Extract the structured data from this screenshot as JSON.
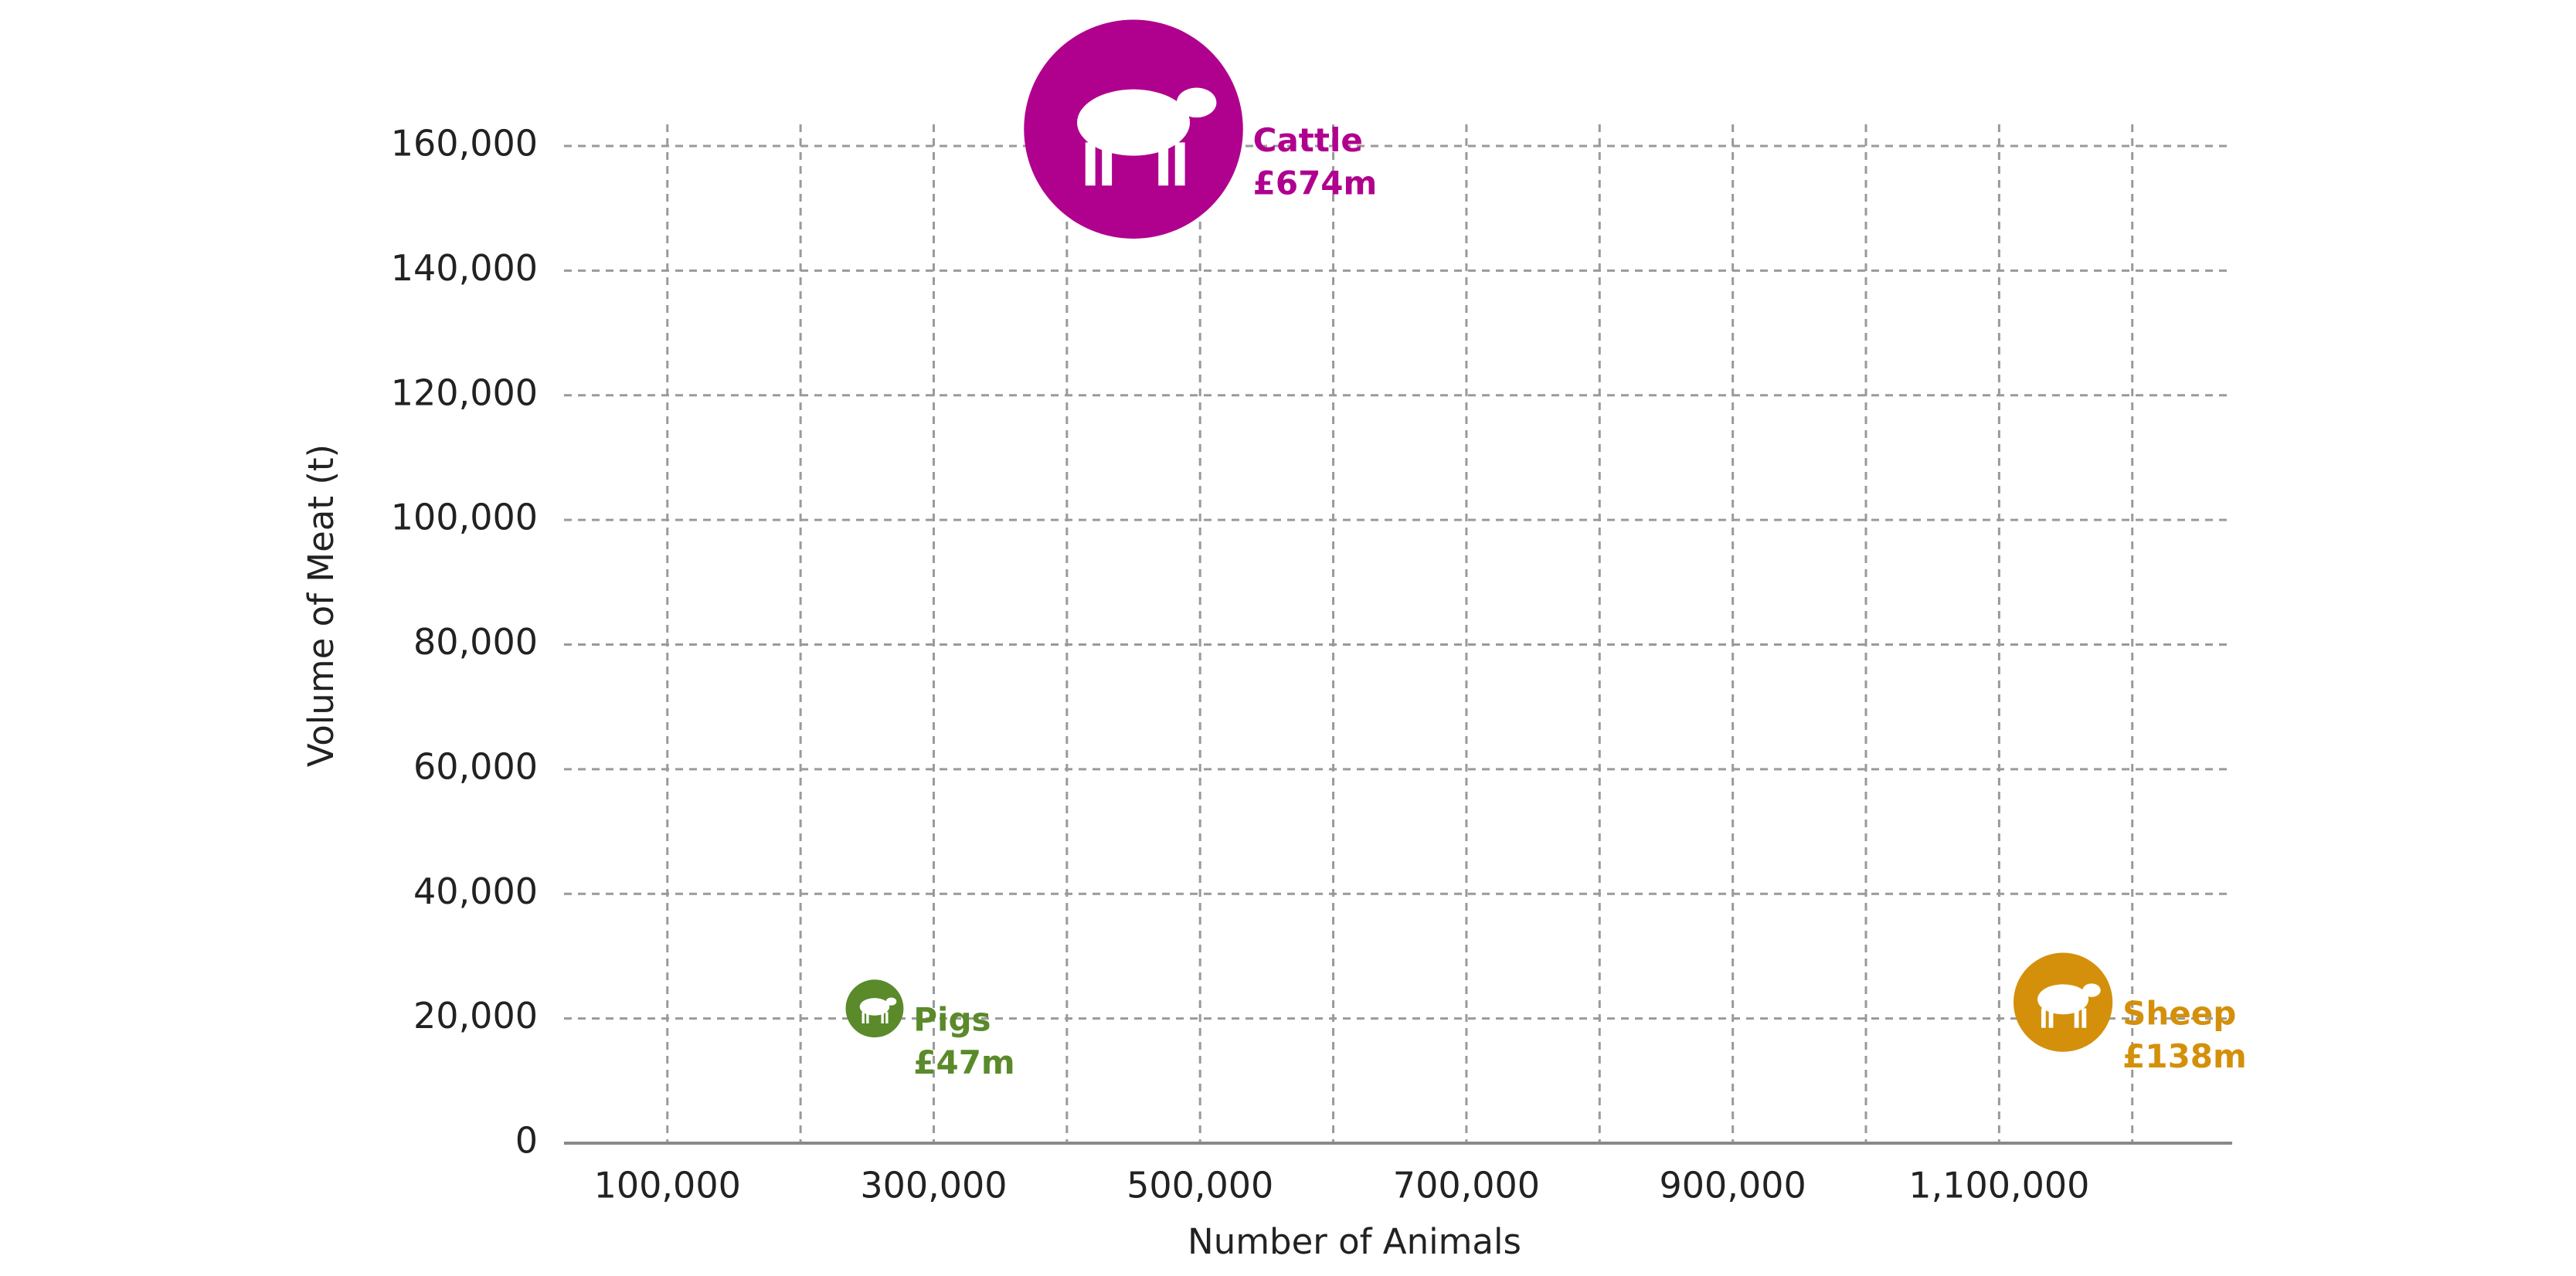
{
  "chart_data": {
    "type": "bubble",
    "x_label": "Number of Animals",
    "y_label": "Volume of Meat (t)",
    "xlim": [
      22400,
      1275000
    ],
    "ylim": [
      0,
      160000
    ],
    "xticks": [
      {
        "value": 100000,
        "label": "100,000"
      },
      {
        "value": 300000,
        "label": "300,000"
      },
      {
        "value": 500000,
        "label": "500,000"
      },
      {
        "value": 700000,
        "label": "700,000"
      },
      {
        "value": 900000,
        "label": "900,000"
      },
      {
        "value": 1100000,
        "label": "1,100,000"
      }
    ],
    "x_minor_ticks": [
      200000,
      400000,
      600000,
      800000,
      1000000,
      1200000
    ],
    "yticks": [
      0,
      {
        "value": 20000,
        "label": "20,000"
      },
      {
        "value": 40000,
        "label": "40,000"
      },
      {
        "value": 60000,
        "label": "60,000"
      },
      {
        "value": 80000,
        "label": "80,000"
      },
      {
        "value": 100000,
        "label": "100,000"
      },
      {
        "value": 120000,
        "label": "120,000"
      },
      {
        "value": 140000,
        "label": "140,000"
      },
      {
        "value": 160000,
        "label": "160,000"
      }
    ],
    "grid": true,
    "series": [
      {
        "name": "Cattle",
        "color": "#b0008e",
        "x": [
          450000
        ],
        "values": [
          162700
        ],
        "sizes": [
          674
        ],
        "value_labels": [
          "£674m"
        ]
      },
      {
        "name": "Pigs",
        "color": "#5a8a2a",
        "x": [
          255600
        ],
        "values": [
          21600
        ],
        "sizes": [
          47
        ],
        "value_labels": [
          "£47m"
        ]
      },
      {
        "name": "Sheep",
        "color": "#d4900a",
        "x": [
          1148000
        ],
        "values": [
          22600
        ],
        "sizes": [
          138
        ],
        "value_labels": [
          "£138m"
        ]
      }
    ]
  }
}
